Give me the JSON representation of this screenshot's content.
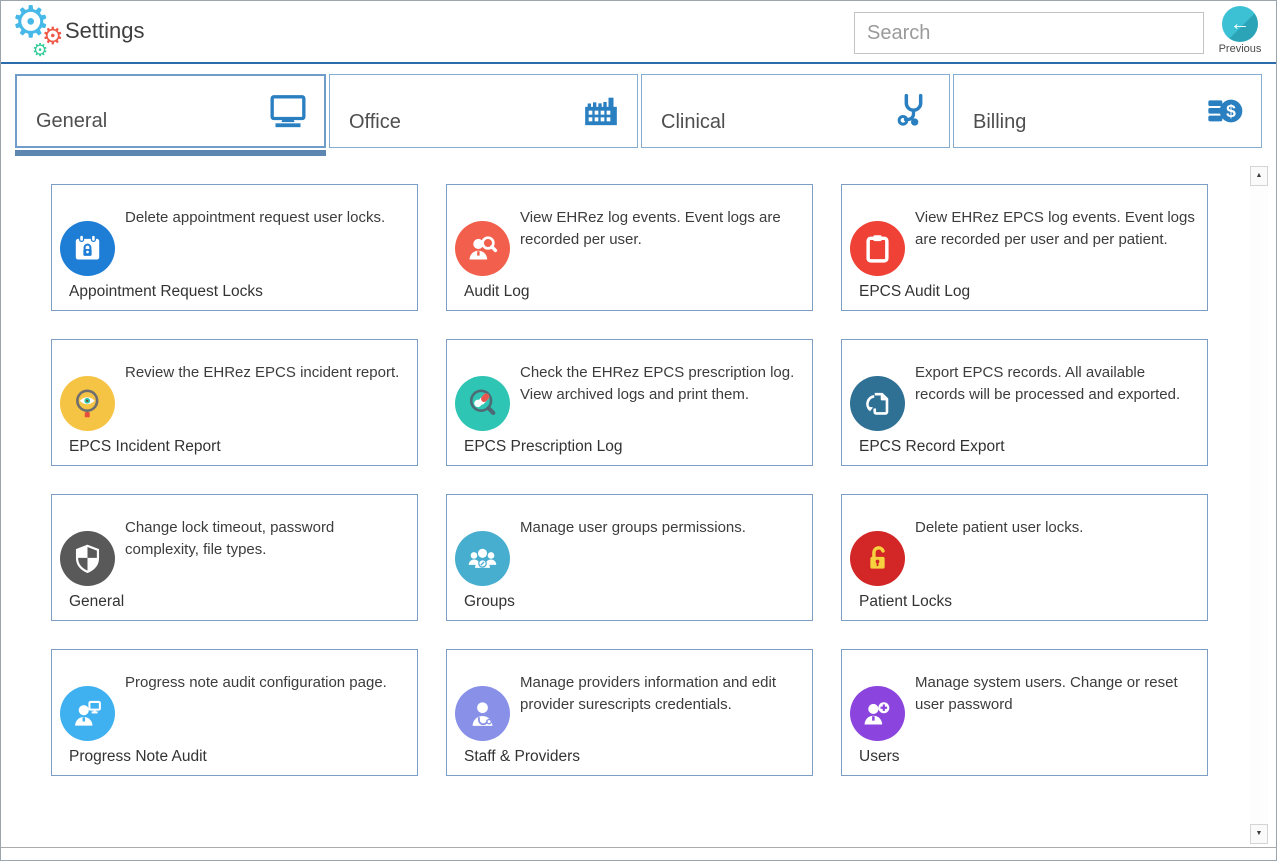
{
  "header": {
    "title": "Settings",
    "search_placeholder": "Search",
    "previous_label": "Previous"
  },
  "accent": {
    "header_line": "#2d6cab",
    "tab_icon_blue": "#2a7fc0",
    "selected_tab_underline": "#5d87b0",
    "previous_button_teal": "#35b7ca",
    "card_border": "#7d9ec4"
  },
  "tabs": [
    {
      "label": "General",
      "icon": "monitor-icon",
      "selected": true
    },
    {
      "label": "Office",
      "icon": "factory-icon",
      "selected": false
    },
    {
      "label": "Clinical",
      "icon": "stethoscope-icon",
      "selected": false
    },
    {
      "label": "Billing",
      "icon": "billing-coins-icon",
      "selected": false
    }
  ],
  "cards": [
    {
      "title": "Appointment Request Locks",
      "description": "Delete appointment request user locks.",
      "icon": "calendar-lock-icon",
      "color": "#1e7ed6"
    },
    {
      "title": "Audit Log",
      "description": "View EHRez log events. Event logs are recorded per user.",
      "icon": "user-search-icon",
      "color": "#f2604d"
    },
    {
      "title": "EPCS Audit Log",
      "description": "View EHRez EPCS log events. Event logs are recorded per user and per patient.",
      "icon": "clipboard-icon",
      "color": "#ef4136"
    },
    {
      "title": "EPCS Incident Report",
      "description": "Review the EHRez EPCS incident report.",
      "icon": "magnifier-eye-icon",
      "color": "#f6c445"
    },
    {
      "title": "EPCS Prescription Log",
      "description": "Check the EHRez EPCS prescription log. View archived logs and print them.",
      "icon": "magnifier-pills-icon",
      "color": "#2fc5b4"
    },
    {
      "title": "EPCS Record Export",
      "description": "Export EPCS records. All available records will be processed and exported.",
      "icon": "document-export-icon",
      "color": "#2f7095"
    },
    {
      "title": "General",
      "description": "Change lock timeout, password complexity, file types.",
      "icon": "shield-icon",
      "color": "#595959"
    },
    {
      "title": "Groups",
      "description": "Manage user groups permissions.",
      "icon": "user-group-icon",
      "color": "#48aed0"
    },
    {
      "title": "Patient Locks",
      "description": "Delete patient user locks.",
      "icon": "lock-open-icon",
      "color": "#d32727"
    },
    {
      "title": "Progress Note Audit",
      "description": "Progress note audit configuration page.",
      "icon": "user-monitor-icon",
      "color": "#3fb0f0"
    },
    {
      "title": "Staff & Providers",
      "description": "Manage providers information and edit provider surescripts credentials.",
      "icon": "doctor-icon",
      "color": "#8890e8"
    },
    {
      "title": "Users",
      "description": "Manage system users. Change or reset user password",
      "icon": "user-plus-icon",
      "color": "#8b44dd"
    }
  ],
  "scrollbar": {
    "up_glyph": "▲",
    "down_glyph": "▼"
  }
}
